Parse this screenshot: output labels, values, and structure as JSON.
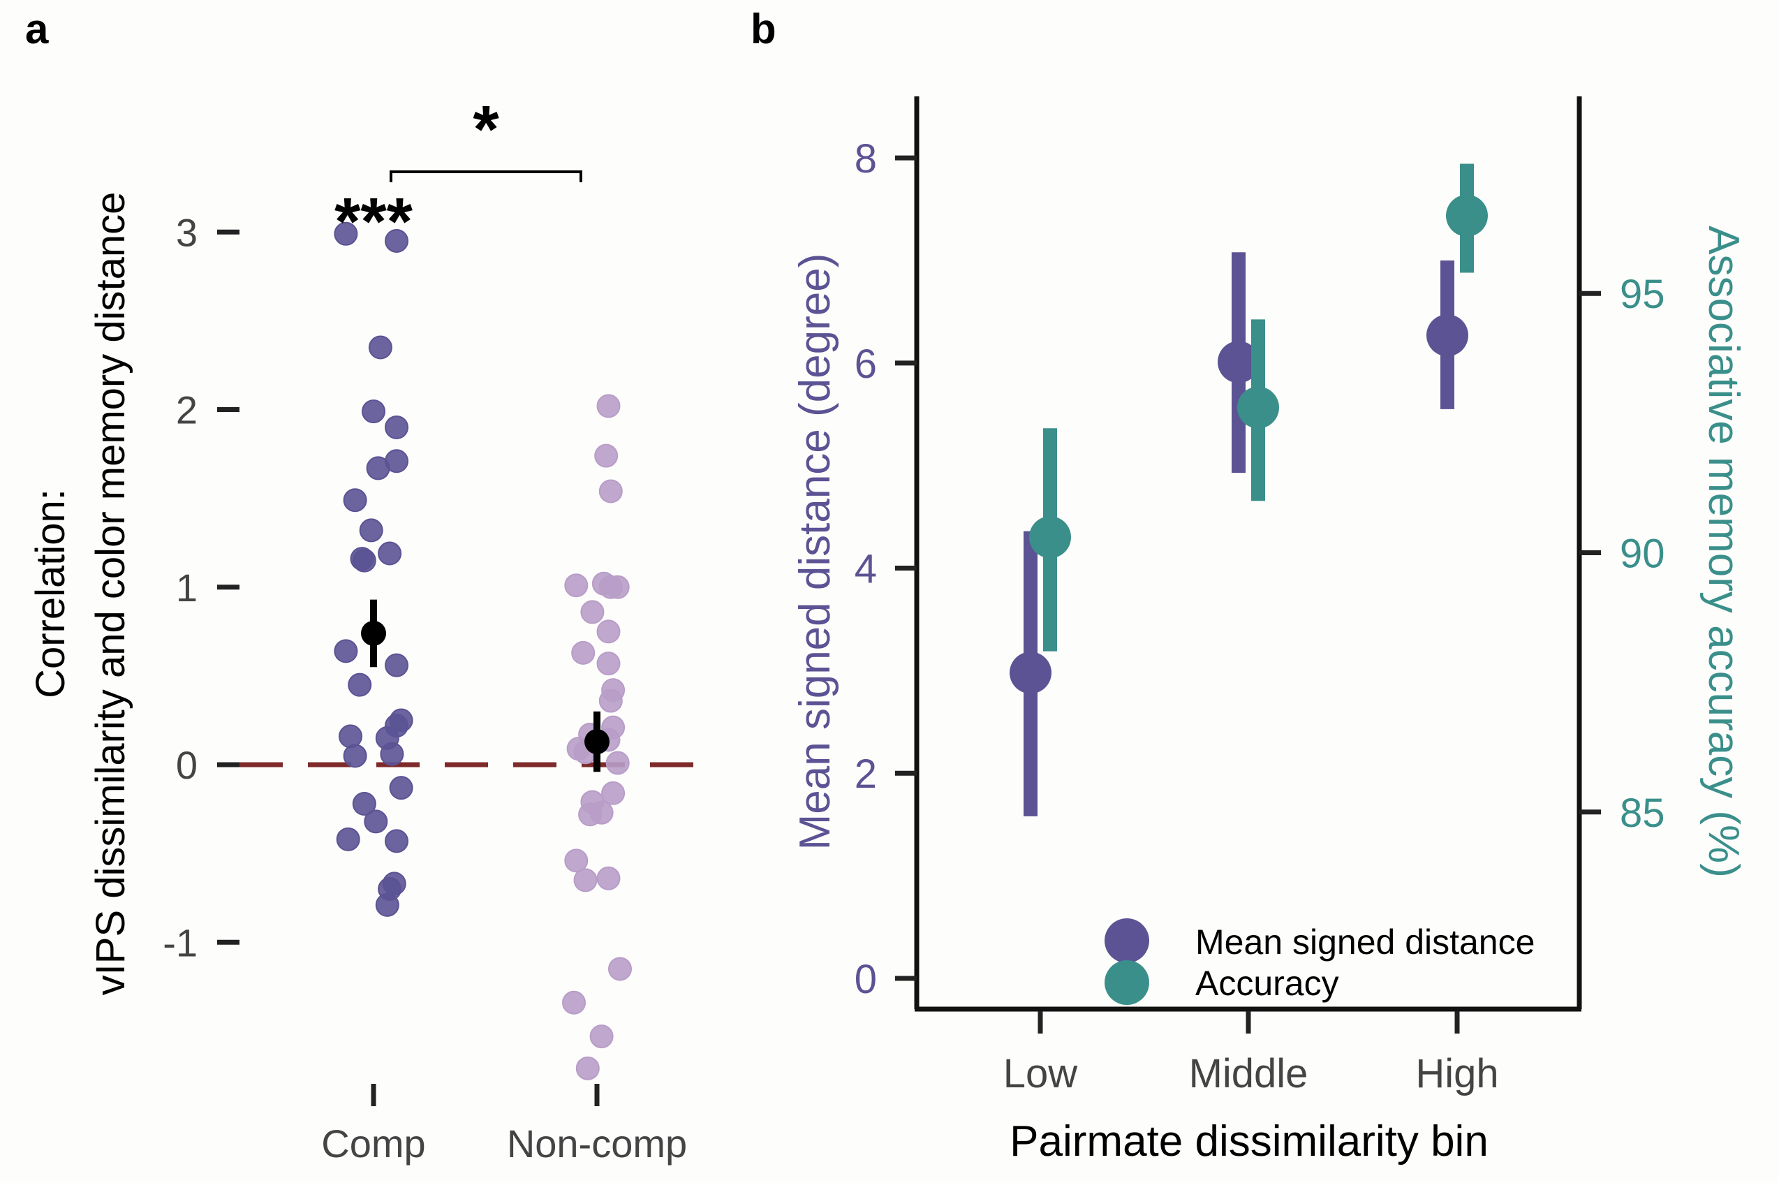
{
  "colors": {
    "comp": "#5b5393",
    "noncomp": "#b89dc8",
    "mean_point": "#000000",
    "zero_line": "#7f2a2a",
    "accuracy": "#3a8f8a",
    "distance": "#5b5393",
    "axis": "#111111",
    "tick_text": "#444444"
  },
  "panel_a": {
    "letter": "a",
    "ylabel_line1": "Correlation:",
    "ylabel_line2": "vIPS dissimilarity and color memory distance",
    "sig_comp": "***",
    "sig_bracket": "*"
  },
  "panel_b": {
    "letter": "b",
    "xlabel": "Pairmate dissimilarity bin",
    "ylabel_left": "Mean signed distance (degree)",
    "ylabel_right": "Associative memory accuracy (%)",
    "legend": [
      {
        "label": "Mean signed distance",
        "color": "#5b5393"
      },
      {
        "label": "Accuracy",
        "color": "#3a8f8a"
      }
    ]
  },
  "chart_data": [
    {
      "type": "scatter",
      "panel": "a",
      "categories": [
        "Comp",
        "Non-comp"
      ],
      "ylim": [
        -1.75,
        4.0
      ],
      "yticks": [
        -1,
        0,
        1,
        2,
        3
      ],
      "ytick_labels": [
        "-1",
        "0",
        "1",
        "2",
        "3"
      ],
      "reference_line": 0,
      "series": [
        {
          "name": "Comp",
          "points": [
            {
              "dx": -0.12,
              "y": 2.99
            },
            {
              "dx": 0.1,
              "y": 2.95
            },
            {
              "dx": 0.03,
              "y": 2.35
            },
            {
              "dx": 0.0,
              "y": 1.99
            },
            {
              "dx": 0.1,
              "y": 1.9
            },
            {
              "dx": 0.02,
              "y": 1.67
            },
            {
              "dx": 0.1,
              "y": 1.71
            },
            {
              "dx": -0.08,
              "y": 1.49
            },
            {
              "dx": -0.01,
              "y": 1.32
            },
            {
              "dx": -0.05,
              "y": 1.16
            },
            {
              "dx": 0.07,
              "y": 1.19
            },
            {
              "dx": -0.04,
              "y": 1.15
            },
            {
              "dx": -0.12,
              "y": 0.64
            },
            {
              "dx": 0.1,
              "y": 0.56
            },
            {
              "dx": -0.06,
              "y": 0.45
            },
            {
              "dx": 0.12,
              "y": 0.25
            },
            {
              "dx": 0.1,
              "y": 0.22
            },
            {
              "dx": 0.06,
              "y": 0.15
            },
            {
              "dx": -0.1,
              "y": 0.16
            },
            {
              "dx": 0.08,
              "y": 0.06
            },
            {
              "dx": -0.08,
              "y": 0.05
            },
            {
              "dx": 0.12,
              "y": -0.13
            },
            {
              "dx": -0.04,
              "y": -0.22
            },
            {
              "dx": 0.01,
              "y": -0.32
            },
            {
              "dx": -0.11,
              "y": -0.42
            },
            {
              "dx": 0.1,
              "y": -0.43
            },
            {
              "dx": 0.09,
              "y": -0.67
            },
            {
              "dx": 0.07,
              "y": -0.7
            },
            {
              "dx": 0.06,
              "y": -0.79
            }
          ],
          "mean": 0.74,
          "ci": [
            0.55,
            0.93
          ]
        },
        {
          "name": "Non-comp",
          "points": [
            {
              "dx": 0.05,
              "y": 2.02
            },
            {
              "dx": 0.04,
              "y": 1.74
            },
            {
              "dx": 0.06,
              "y": 1.54
            },
            {
              "dx": -0.09,
              "y": 1.01
            },
            {
              "dx": 0.03,
              "y": 1.02
            },
            {
              "dx": 0.06,
              "y": 1.0
            },
            {
              "dx": 0.09,
              "y": 1.0
            },
            {
              "dx": -0.02,
              "y": 0.86
            },
            {
              "dx": 0.05,
              "y": 0.75
            },
            {
              "dx": -0.06,
              "y": 0.63
            },
            {
              "dx": 0.05,
              "y": 0.57
            },
            {
              "dx": 0.07,
              "y": 0.42
            },
            {
              "dx": 0.06,
              "y": 0.36
            },
            {
              "dx": 0.07,
              "y": 0.21
            },
            {
              "dx": -0.03,
              "y": 0.17
            },
            {
              "dx": 0.05,
              "y": 0.14
            },
            {
              "dx": -0.08,
              "y": 0.09
            },
            {
              "dx": -0.05,
              "y": 0.07
            },
            {
              "dx": 0.09,
              "y": 0.01
            },
            {
              "dx": 0.07,
              "y": -0.16
            },
            {
              "dx": -0.02,
              "y": -0.21
            },
            {
              "dx": 0.02,
              "y": -0.27
            },
            {
              "dx": -0.03,
              "y": -0.28
            },
            {
              "dx": -0.09,
              "y": -0.54
            },
            {
              "dx": 0.05,
              "y": -0.64
            },
            {
              "dx": -0.05,
              "y": -0.65
            },
            {
              "dx": 0.1,
              "y": -1.15
            },
            {
              "dx": -0.1,
              "y": -1.34
            },
            {
              "dx": 0.02,
              "y": -1.53
            },
            {
              "dx": -0.04,
              "y": -1.71
            }
          ],
          "mean": 0.13,
          "ci": [
            -0.04,
            0.3
          ]
        }
      ],
      "significance": [
        {
          "label": "***",
          "over": "Comp"
        },
        {
          "label": "*",
          "between": [
            "Comp",
            "Non-comp"
          ]
        }
      ]
    },
    {
      "type": "scatter",
      "panel": "b",
      "categories": [
        "Low",
        "Middle",
        "High"
      ],
      "xlabel": "Pairmate dissimilarity bin",
      "ylabel": "Mean signed distance (degree)",
      "ylim": [
        -0.3,
        8.6
      ],
      "yticks": [
        0,
        2,
        4,
        6,
        8
      ],
      "ylabel_right": "Associative memory accuracy (%)",
      "ylim_right": [
        81.2,
        98.8
      ],
      "yticks_right": [
        85,
        90,
        95
      ],
      "series": [
        {
          "name": "Mean signed distance",
          "axis": "left",
          "values": [
            2.98,
            6.01,
            6.27
          ],
          "error_low": [
            1.58,
            4.93,
            5.55
          ],
          "error_high": [
            4.36,
            7.08,
            7.0
          ]
        },
        {
          "name": "Accuracy",
          "axis": "right",
          "values": [
            90.3,
            92.8,
            96.5
          ],
          "error_low": [
            88.1,
            91.0,
            95.4
          ],
          "error_high": [
            92.4,
            94.5,
            97.5
          ]
        }
      ]
    }
  ]
}
